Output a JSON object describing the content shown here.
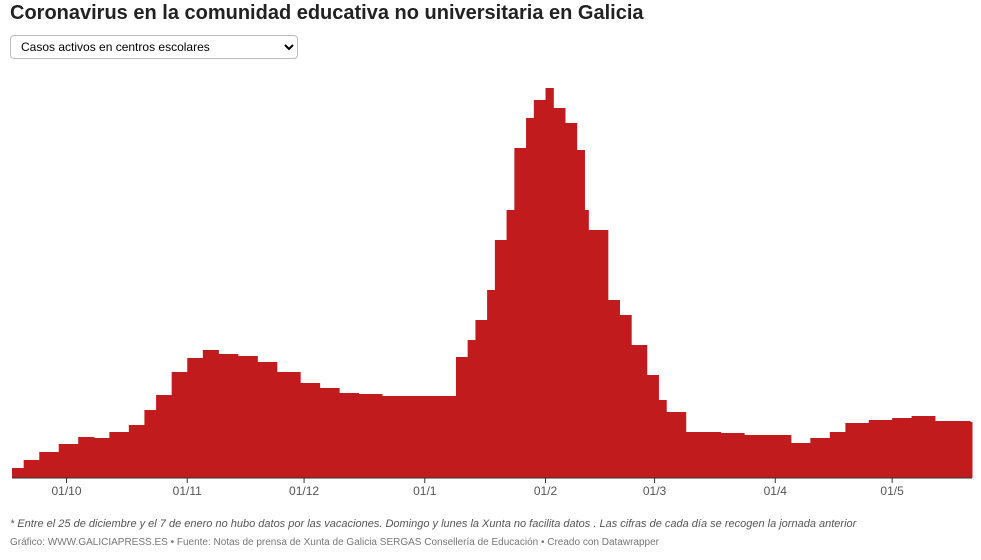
{
  "chart_data": {
    "type": "step-area",
    "title": "Coronavirus en la comunidad educativa no universitaria en Galicia",
    "selector": "Casos activos en centros escolares",
    "note": "* Entre el 25 de diciembre y el 7 de enero no hubo datos por las vacaciones. Domingo y lunes la Xunta no facilita datos . Las cifras de cada día se recogen la jornada anterior",
    "source": "Gráfico: WWW.GALICIAPRESS.ES • Fuente: Notas de prensa de Xunta de Galicia SERGAS Consellería de Educación • Creado con Datawrapper",
    "color": "#c21b1e",
    "x": [
      "17/9",
      "20/9",
      "24/9",
      "29/9",
      "4/10",
      "8/10",
      "12/10",
      "17/10",
      "21/10",
      "24/10",
      "28/10",
      "1/11",
      "5/11",
      "9/11",
      "14/11",
      "19/11",
      "24/11",
      "30/11",
      "5/12",
      "10/12",
      "15/12",
      "21/12",
      "8/1",
      "9/1",
      "12/1",
      "14/1",
      "17/1",
      "19/1",
      "22/1",
      "24/1",
      "27/1",
      "29/1",
      "1/2",
      "3/2",
      "6/2",
      "9/2",
      "11/2",
      "12/2",
      "17/2",
      "20/2",
      "23/2",
      "27/2",
      "2/3",
      "4/3",
      "9/3",
      "18/3",
      "24/3",
      "5/4",
      "10/4",
      "15/4",
      "19/4",
      "25/4",
      "1/5",
      "6/5",
      "12/5",
      "21/5"
    ],
    "values": [
      10,
      18,
      26,
      34,
      41,
      40,
      46,
      53,
      68,
      83,
      106,
      120,
      128,
      124,
      122,
      116,
      106,
      95,
      90,
      85,
      84,
      82,
      82,
      121,
      138,
      158,
      188,
      238,
      268,
      330,
      360,
      378,
      390,
      370,
      355,
      328,
      268,
      248,
      178,
      163,
      133,
      103,
      78,
      66,
      46,
      45,
      43,
      35,
      40,
      46,
      55,
      58,
      60,
      62,
      57,
      56
    ],
    "ylim": [
      0,
      400
    ],
    "xticks": [
      "01/10",
      "01/11",
      "01/12",
      "01/1",
      "01/2",
      "01/3",
      "01/4",
      "01/5"
    ]
  }
}
